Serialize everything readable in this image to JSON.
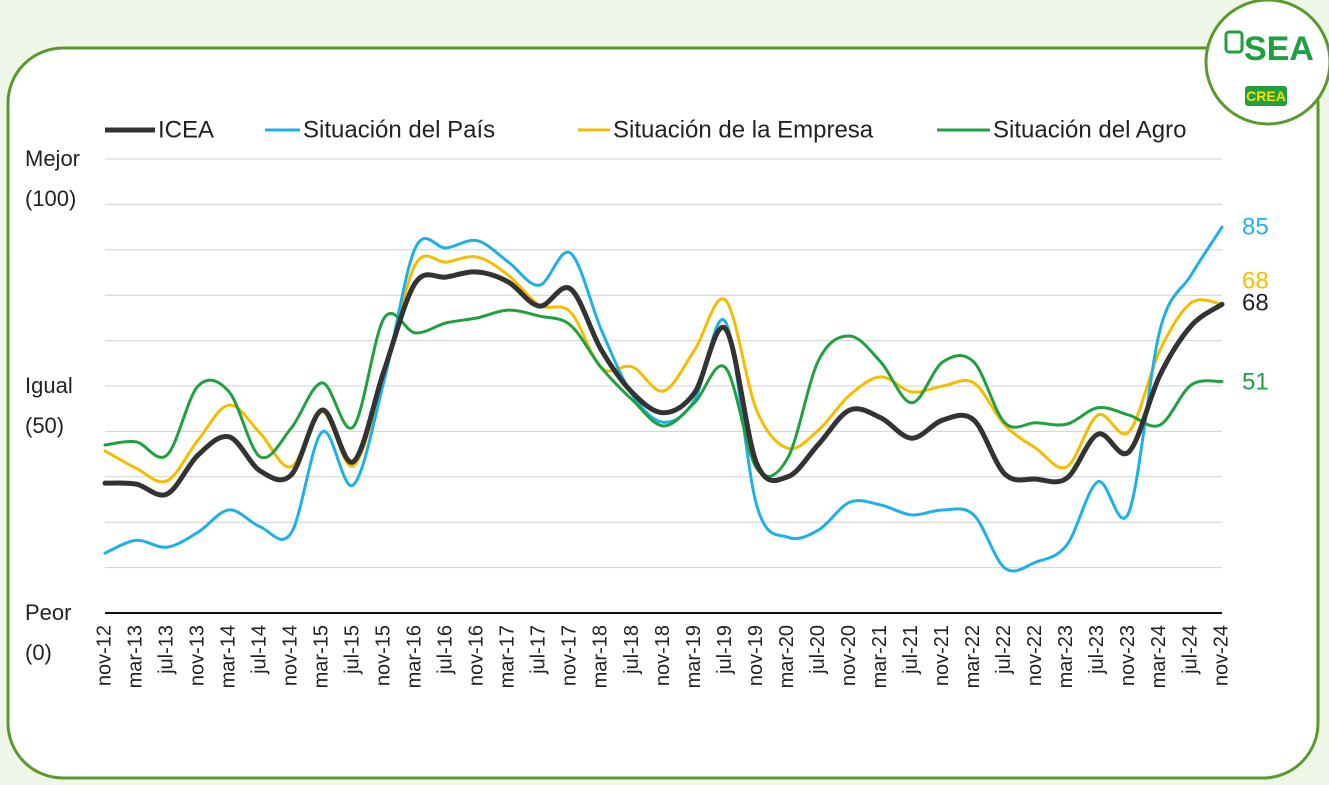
{
  "logo": {
    "text": "SEA",
    "badge": "CREA"
  },
  "chart_data": {
    "type": "line",
    "categories": [
      "nov-12",
      "mar-13",
      "jul-13",
      "nov-13",
      "mar-14",
      "jul-14",
      "nov-14",
      "mar-15",
      "jul-15",
      "nov-15",
      "mar-16",
      "jul-16",
      "nov-16",
      "mar-17",
      "jul-17",
      "nov-17",
      "mar-18",
      "jul-18",
      "nov-18",
      "mar-19",
      "jul-19",
      "nov-19",
      "mar-20",
      "jul-20",
      "nov-20",
      "mar-21",
      "jul-21",
      "nov-21",
      "mar-22",
      "jul-22",
      "nov-22",
      "mar-23",
      "jul-23",
      "nov-23",
      "mar-24",
      "jul-24",
      "nov-24"
    ],
    "series": [
      {
        "name": "ICEA",
        "color": "#333333",
        "values": [
          28.6,
          28.4,
          26.2,
          34.8,
          38.8,
          31.3,
          30.4,
          44.7,
          33.3,
          53.5,
          72.7,
          74,
          75.1,
          72.9,
          67.6,
          71.4,
          57.9,
          48.5,
          44.1,
          48.5,
          62.6,
          33,
          30,
          37.2,
          44.7,
          43,
          38.5,
          42.5,
          42.5,
          30.6,
          29.5,
          29.7,
          39.4,
          35.5,
          52.4,
          63.2,
          68
        ]
      },
      {
        "name": "Situación del País",
        "color": "#1fb0e6",
        "values": [
          13.2,
          16,
          14.5,
          17.8,
          22.7,
          19,
          17.6,
          39.9,
          28.2,
          51.3,
          80.4,
          80.4,
          82,
          77.3,
          72.2,
          79.3,
          62.3,
          48,
          42,
          46.9,
          64.1,
          23.8,
          16.7,
          18.3,
          24.4,
          23.8,
          21.6,
          22.7,
          21.6,
          9.9,
          11.2,
          15,
          28.9,
          22.2,
          62.3,
          74.4,
          85
        ]
      },
      {
        "name": "Situación de la Empresa",
        "color": "#f5bd00",
        "values": [
          35.7,
          31.9,
          29.1,
          38.1,
          45.8,
          39.6,
          32.2,
          44.3,
          32.4,
          52.4,
          76.7,
          77.3,
          78.4,
          74.4,
          67.8,
          66.3,
          54,
          54.2,
          48.9,
          57.9,
          68.9,
          44.7,
          36.3,
          40.3,
          48,
          52,
          48.7,
          50,
          50.7,
          41.4,
          36.3,
          32.2,
          43.6,
          39.9,
          57.9,
          68.3,
          68
        ]
      },
      {
        "name": "Situación del Agro",
        "color": "#20a040",
        "values": [
          37,
          37.7,
          34.8,
          50,
          48.7,
          34.4,
          40.7,
          50.7,
          41,
          65,
          61.7,
          63.9,
          65,
          66.7,
          65.4,
          63.4,
          54,
          46.9,
          41.2,
          46.3,
          54,
          31.9,
          34.1,
          55.7,
          61,
          55.3,
          46.3,
          55.3,
          55.3,
          41.9,
          41.9,
          41.6,
          45.2,
          43.6,
          41.4,
          50.2,
          51
        ]
      }
    ],
    "ylim": [
      0,
      100
    ],
    "yticks": [
      {
        "value": 100,
        "label": "Mejor (100)"
      },
      {
        "value": 50,
        "label": "Igual (50)"
      },
      {
        "value": 0,
        "label": "Peor (0)"
      }
    ],
    "ygrid": [
      10,
      20,
      30,
      40,
      50,
      60,
      70,
      80,
      90,
      100
    ],
    "grid": true
  }
}
